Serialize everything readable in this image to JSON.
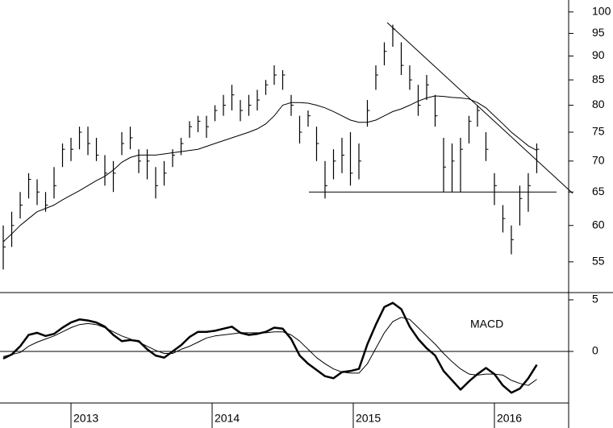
{
  "chart_data": [
    {
      "type": "ohlc",
      "log_scale": true,
      "xlim": [
        2012.497,
        2016.526
      ],
      "ylim": [
        51.1,
        102.9
      ],
      "yticks": [
        55,
        60,
        65,
        70,
        75,
        80,
        85,
        90,
        95,
        100
      ],
      "x": [
        2012.52,
        2012.58,
        2012.64,
        2012.7,
        2012.76,
        2012.82,
        2012.88,
        2012.94,
        2013.0,
        2013.06,
        2013.12,
        2013.18,
        2013.24,
        2013.3,
        2013.36,
        2013.42,
        2013.48,
        2013.54,
        2013.6,
        2013.66,
        2013.72,
        2013.78,
        2013.84,
        2013.9,
        2013.96,
        2014.02,
        2014.08,
        2014.14,
        2014.2,
        2014.26,
        2014.32,
        2014.38,
        2014.44,
        2014.5,
        2014.56,
        2014.62,
        2014.68,
        2014.74,
        2014.8,
        2014.86,
        2014.92,
        2014.98,
        2015.04,
        2015.1,
        2015.16,
        2015.22,
        2015.28,
        2015.34,
        2015.4,
        2015.46,
        2015.52,
        2015.58,
        2015.64,
        2015.7,
        2015.76,
        2015.82,
        2015.88,
        2015.94,
        2016.0,
        2016.06,
        2016.12,
        2016.18,
        2016.24,
        2016.3
      ],
      "high": [
        60,
        62,
        65,
        68,
        67,
        65,
        69,
        73,
        74,
        76,
        76,
        74,
        71,
        70,
        75,
        76,
        72,
        72,
        69,
        70,
        72,
        74,
        77,
        78,
        78,
        80,
        82,
        84,
        81,
        82,
        83,
        85,
        88,
        87,
        82,
        78,
        79,
        76,
        70,
        72,
        74,
        75,
        73,
        81,
        88,
        93,
        97,
        93,
        88,
        84,
        86,
        82,
        74,
        73,
        74,
        78,
        80,
        75,
        68,
        63,
        60,
        66,
        68,
        73
      ],
      "low": [
        54,
        57,
        61,
        64,
        63,
        62,
        64,
        69,
        70,
        72,
        71,
        70,
        66,
        65,
        71,
        72,
        68,
        67,
        64,
        66,
        69,
        71,
        74,
        75,
        74,
        77,
        78,
        79,
        77,
        78,
        79,
        82,
        84,
        83,
        78,
        73,
        76,
        70,
        64,
        67,
        68,
        66,
        67,
        76,
        83,
        88,
        92,
        86,
        83,
        78,
        81,
        76,
        65,
        65,
        65,
        73,
        76,
        70,
        63,
        59,
        56,
        60,
        62,
        68
      ],
      "close": [
        57,
        60,
        63,
        67,
        65,
        63,
        66,
        72,
        72,
        75,
        73,
        71,
        68,
        68,
        73,
        74,
        70,
        70,
        66,
        68,
        71,
        73,
        76,
        77,
        76,
        79,
        80,
        82,
        79,
        80,
        81,
        84,
        86,
        86,
        80,
        75,
        78,
        73,
        66,
        70,
        71,
        68,
        70,
        79,
        86,
        91,
        96,
        88,
        85,
        80,
        84,
        78,
        69,
        70,
        72,
        77,
        79,
        72,
        66,
        61,
        58,
        64,
        66,
        72
      ],
      "ma": [
        57.7,
        58.8,
        60,
        61,
        62,
        62.5,
        63,
        63.8,
        64.5,
        65.2,
        66,
        66.8,
        67.5,
        68.5,
        69.8,
        70.6,
        71,
        71,
        71,
        71.2,
        71.4,
        71.6,
        71.8,
        72,
        72.5,
        73,
        73.5,
        74,
        74.5,
        75,
        75.6,
        76.5,
        78,
        80,
        80.5,
        80.5,
        80.4,
        80,
        79.5,
        78.8,
        78,
        77.2,
        76.8,
        76.8,
        77.2,
        78,
        78.8,
        79.3,
        80,
        80.8,
        81.4,
        81.8,
        81.7,
        81.5,
        81.4,
        81.2,
        80.5,
        79.5,
        78,
        76.5,
        75,
        73.8,
        72.6,
        71.8
      ],
      "lines": [
        {
          "x": [
            2015.24,
            2016.554
          ],
          "y": [
            97.5,
            64.8
          ]
        },
        {
          "x": [
            2014.686,
            2016.44
          ],
          "y": [
            65,
            65
          ]
        }
      ],
      "color": "#000000"
    },
    {
      "type": "line",
      "title": "MACD",
      "xlim": [
        2012.497,
        2016.526
      ],
      "ylim": [
        -5,
        5.7
      ],
      "yticks": [
        5,
        0
      ],
      "xticks": [
        2013,
        2014,
        2015,
        2016
      ],
      "x": [
        2012.52,
        2012.58,
        2012.64,
        2012.7,
        2012.76,
        2012.82,
        2012.88,
        2012.94,
        2013.0,
        2013.06,
        2013.12,
        2013.18,
        2013.24,
        2013.3,
        2013.36,
        2013.42,
        2013.48,
        2013.54,
        2013.6,
        2013.66,
        2013.72,
        2013.78,
        2013.84,
        2013.9,
        2013.96,
        2014.02,
        2014.08,
        2014.14,
        2014.2,
        2014.26,
        2014.32,
        2014.38,
        2014.44,
        2014.5,
        2014.56,
        2014.62,
        2014.68,
        2014.74,
        2014.8,
        2014.86,
        2014.92,
        2014.98,
        2015.04,
        2015.1,
        2015.16,
        2015.22,
        2015.28,
        2015.34,
        2015.4,
        2015.46,
        2015.52,
        2015.58,
        2015.64,
        2015.7,
        2015.76,
        2015.82,
        2015.88,
        2015.94,
        2016.0,
        2016.06,
        2016.12,
        2016.18,
        2016.24,
        2016.3
      ],
      "series": [
        {
          "color": "#000000",
          "width": 2.5,
          "values": [
            -0.7,
            -0.3,
            0.5,
            1.6,
            1.8,
            1.5,
            1.7,
            2.3,
            2.8,
            3.1,
            3.0,
            2.8,
            2.4,
            1.6,
            1.0,
            1.1,
            1.0,
            0.2,
            -0.4,
            -0.6,
            0,
            0.6,
            1.4,
            1.9,
            1.9,
            2.0,
            2.2,
            2.4,
            1.8,
            1.6,
            1.7,
            1.9,
            2.3,
            2.2,
            1.2,
            -0.4,
            -1.2,
            -1.8,
            -2.4,
            -2.6,
            -2.0,
            -1.9,
            -1.7,
            0.7,
            2.6,
            4.3,
            4.7,
            4.1,
            2.4,
            1.2,
            0.3,
            -0.4,
            -1.9,
            -2.8,
            -3.7,
            -2.9,
            -2.2,
            -1.6,
            -2.2,
            -3.3,
            -4.0,
            -3.6,
            -2.6,
            -1.3
          ]
        },
        {
          "color": "#000000",
          "width": 1,
          "values": [
            -0.5,
            -0.3,
            -0.1,
            0.5,
            0.9,
            1.2,
            1.5,
            1.9,
            2.3,
            2.6,
            2.7,
            2.6,
            2.3,
            1.9,
            1.5,
            1.2,
            0.9,
            0.5,
            0.1,
            -0.2,
            -0.2,
            0.2,
            0.5,
            0.9,
            1.3,
            1.5,
            1.6,
            1.7,
            1.8,
            1.8,
            1.8,
            1.8,
            1.9,
            1.9,
            1.6,
            1.0,
            0.2,
            -0.6,
            -1.2,
            -1.7,
            -2.0,
            -2.1,
            -2.1,
            -1.2,
            0.3,
            1.8,
            2.9,
            3.3,
            3.1,
            2.3,
            1.5,
            0.7,
            -0.2,
            -1.0,
            -1.7,
            -2.2,
            -2.3,
            -2.2,
            -2.2,
            -2.3,
            -2.8,
            -3.1,
            -3.3,
            -2.7
          ]
        }
      ]
    }
  ]
}
